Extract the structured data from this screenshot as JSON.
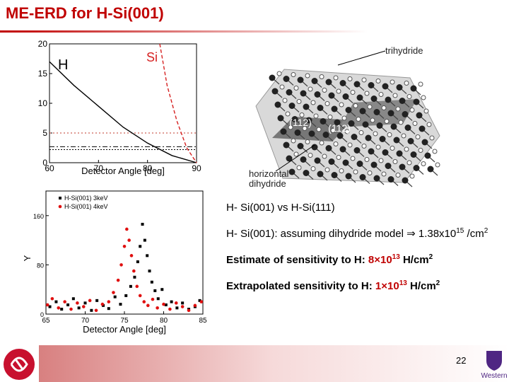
{
  "title": "ME-ERD for H-Si(001)",
  "chart_data": [
    {
      "type": "line",
      "xlabel": "Detector Angle [deg]",
      "xlim": [
        60,
        90
      ],
      "ylim": [
        0,
        20
      ],
      "xticks": [
        60,
        70,
        80,
        90
      ],
      "yticks": [
        0,
        5,
        10,
        15,
        20
      ],
      "series": [
        {
          "name": "H",
          "color": "#000000",
          "x": [
            60,
            65,
            70,
            75,
            80,
            85,
            90
          ],
          "values": [
            17,
            13,
            9.5,
            6,
            3.3,
            1.2,
            0
          ]
        },
        {
          "name": "Si",
          "color": "#d62020",
          "dash": "5,3",
          "x": [
            82.5,
            84,
            86,
            88,
            90
          ],
          "values": [
            20,
            13,
            7,
            2.5,
            0
          ]
        }
      ],
      "hlines": [
        {
          "value": 5,
          "color": "#c0392b",
          "dash": "2,3"
        },
        {
          "value": 2.7,
          "color": "#000000",
          "dash": "7,3,2,3"
        },
        {
          "value": 2.2,
          "color": "#000000",
          "dash": "2,2"
        }
      ]
    },
    {
      "type": "scatter",
      "xlabel": "Detector Angle [deg]",
      "ylabel": "Y",
      "xlim": [
        65,
        85
      ],
      "ylim": [
        0,
        200
      ],
      "xticks": [
        65,
        70,
        75,
        80,
        85
      ],
      "yticks": [
        0,
        80,
        160
      ],
      "legend": "top-left",
      "series": [
        {
          "name": "H-Si(001) 3keV",
          "color": "#000000",
          "marker": "square",
          "x": [
            65.5,
            66.3,
            67,
            67.8,
            68.5,
            69.2,
            70,
            70.8,
            71.5,
            72.3,
            73,
            73.8,
            74.5,
            75.2,
            75.8,
            76.3,
            76.7,
            77,
            77.3,
            77.6,
            77.9,
            78.2,
            78.5,
            78.9,
            79.3,
            79.8,
            80.3,
            81,
            81.7,
            82.4,
            83.2,
            84,
            84.6
          ],
          "values": [
            12,
            20,
            8,
            15,
            25,
            10,
            18,
            6,
            22,
            14,
            9,
            28,
            16,
            30,
            45,
            60,
            85,
            110,
            146,
            120,
            95,
            70,
            52,
            38,
            25,
            40,
            15,
            20,
            10,
            18,
            8,
            12,
            22
          ]
        },
        {
          "name": "H-Si(001) 4keV",
          "color": "#e01010",
          "marker": "circle",
          "x": [
            65.2,
            65.8,
            66.6,
            67.4,
            68.2,
            69,
            69.8,
            70.6,
            71.4,
            72.2,
            73,
            73.6,
            74.2,
            74.6,
            75,
            75.3,
            75.6,
            75.9,
            76.2,
            76.6,
            77,
            77.5,
            78,
            78.6,
            79.2,
            80,
            80.8,
            81.6,
            82.4,
            83.2,
            84,
            84.8
          ],
          "values": [
            15,
            25,
            10,
            20,
            8,
            18,
            12,
            22,
            6,
            16,
            20,
            35,
            55,
            80,
            110,
            138,
            120,
            95,
            70,
            45,
            30,
            20,
            14,
            24,
            10,
            16,
            8,
            18,
            12,
            6,
            14,
            20
          ]
        }
      ]
    }
  ],
  "diagram": {
    "labels": [
      "trihydride",
      "(112)",
      "(112)",
      "horizontal\ndihydride"
    ]
  },
  "bullets": [
    {
      "runs": [
        {
          "text": "H- Si(001) vs H-Si(111)"
        }
      ]
    },
    {
      "runs": [
        {
          "text": "H- Si(001): assuming dihydride model ⇒ 1.38x10"
        },
        {
          "text": "15",
          "sup": true
        },
        {
          "text": " /cm"
        },
        {
          "text": "2",
          "sup": true
        }
      ]
    },
    {
      "bold": true,
      "runs": [
        {
          "text": "Estimate of sensitivity to H: "
        },
        {
          "text": "8×10",
          "color": "#c00000"
        },
        {
          "text": "13",
          "sup": true,
          "color": "#c00000"
        },
        {
          "text": " H/cm"
        },
        {
          "text": "2",
          "sup": true
        }
      ]
    },
    {
      "bold": true,
      "runs": [
        {
          "text": "Extrapolated sensitivity to H: "
        },
        {
          "text": "1×10",
          "color": "#c00000"
        },
        {
          "text": "13",
          "sup": true,
          "color": "#c00000"
        },
        {
          "text": " H/cm"
        },
        {
          "text": "2",
          "sup": true
        }
      ]
    }
  ],
  "page_number": "22",
  "logo_text": "Western"
}
